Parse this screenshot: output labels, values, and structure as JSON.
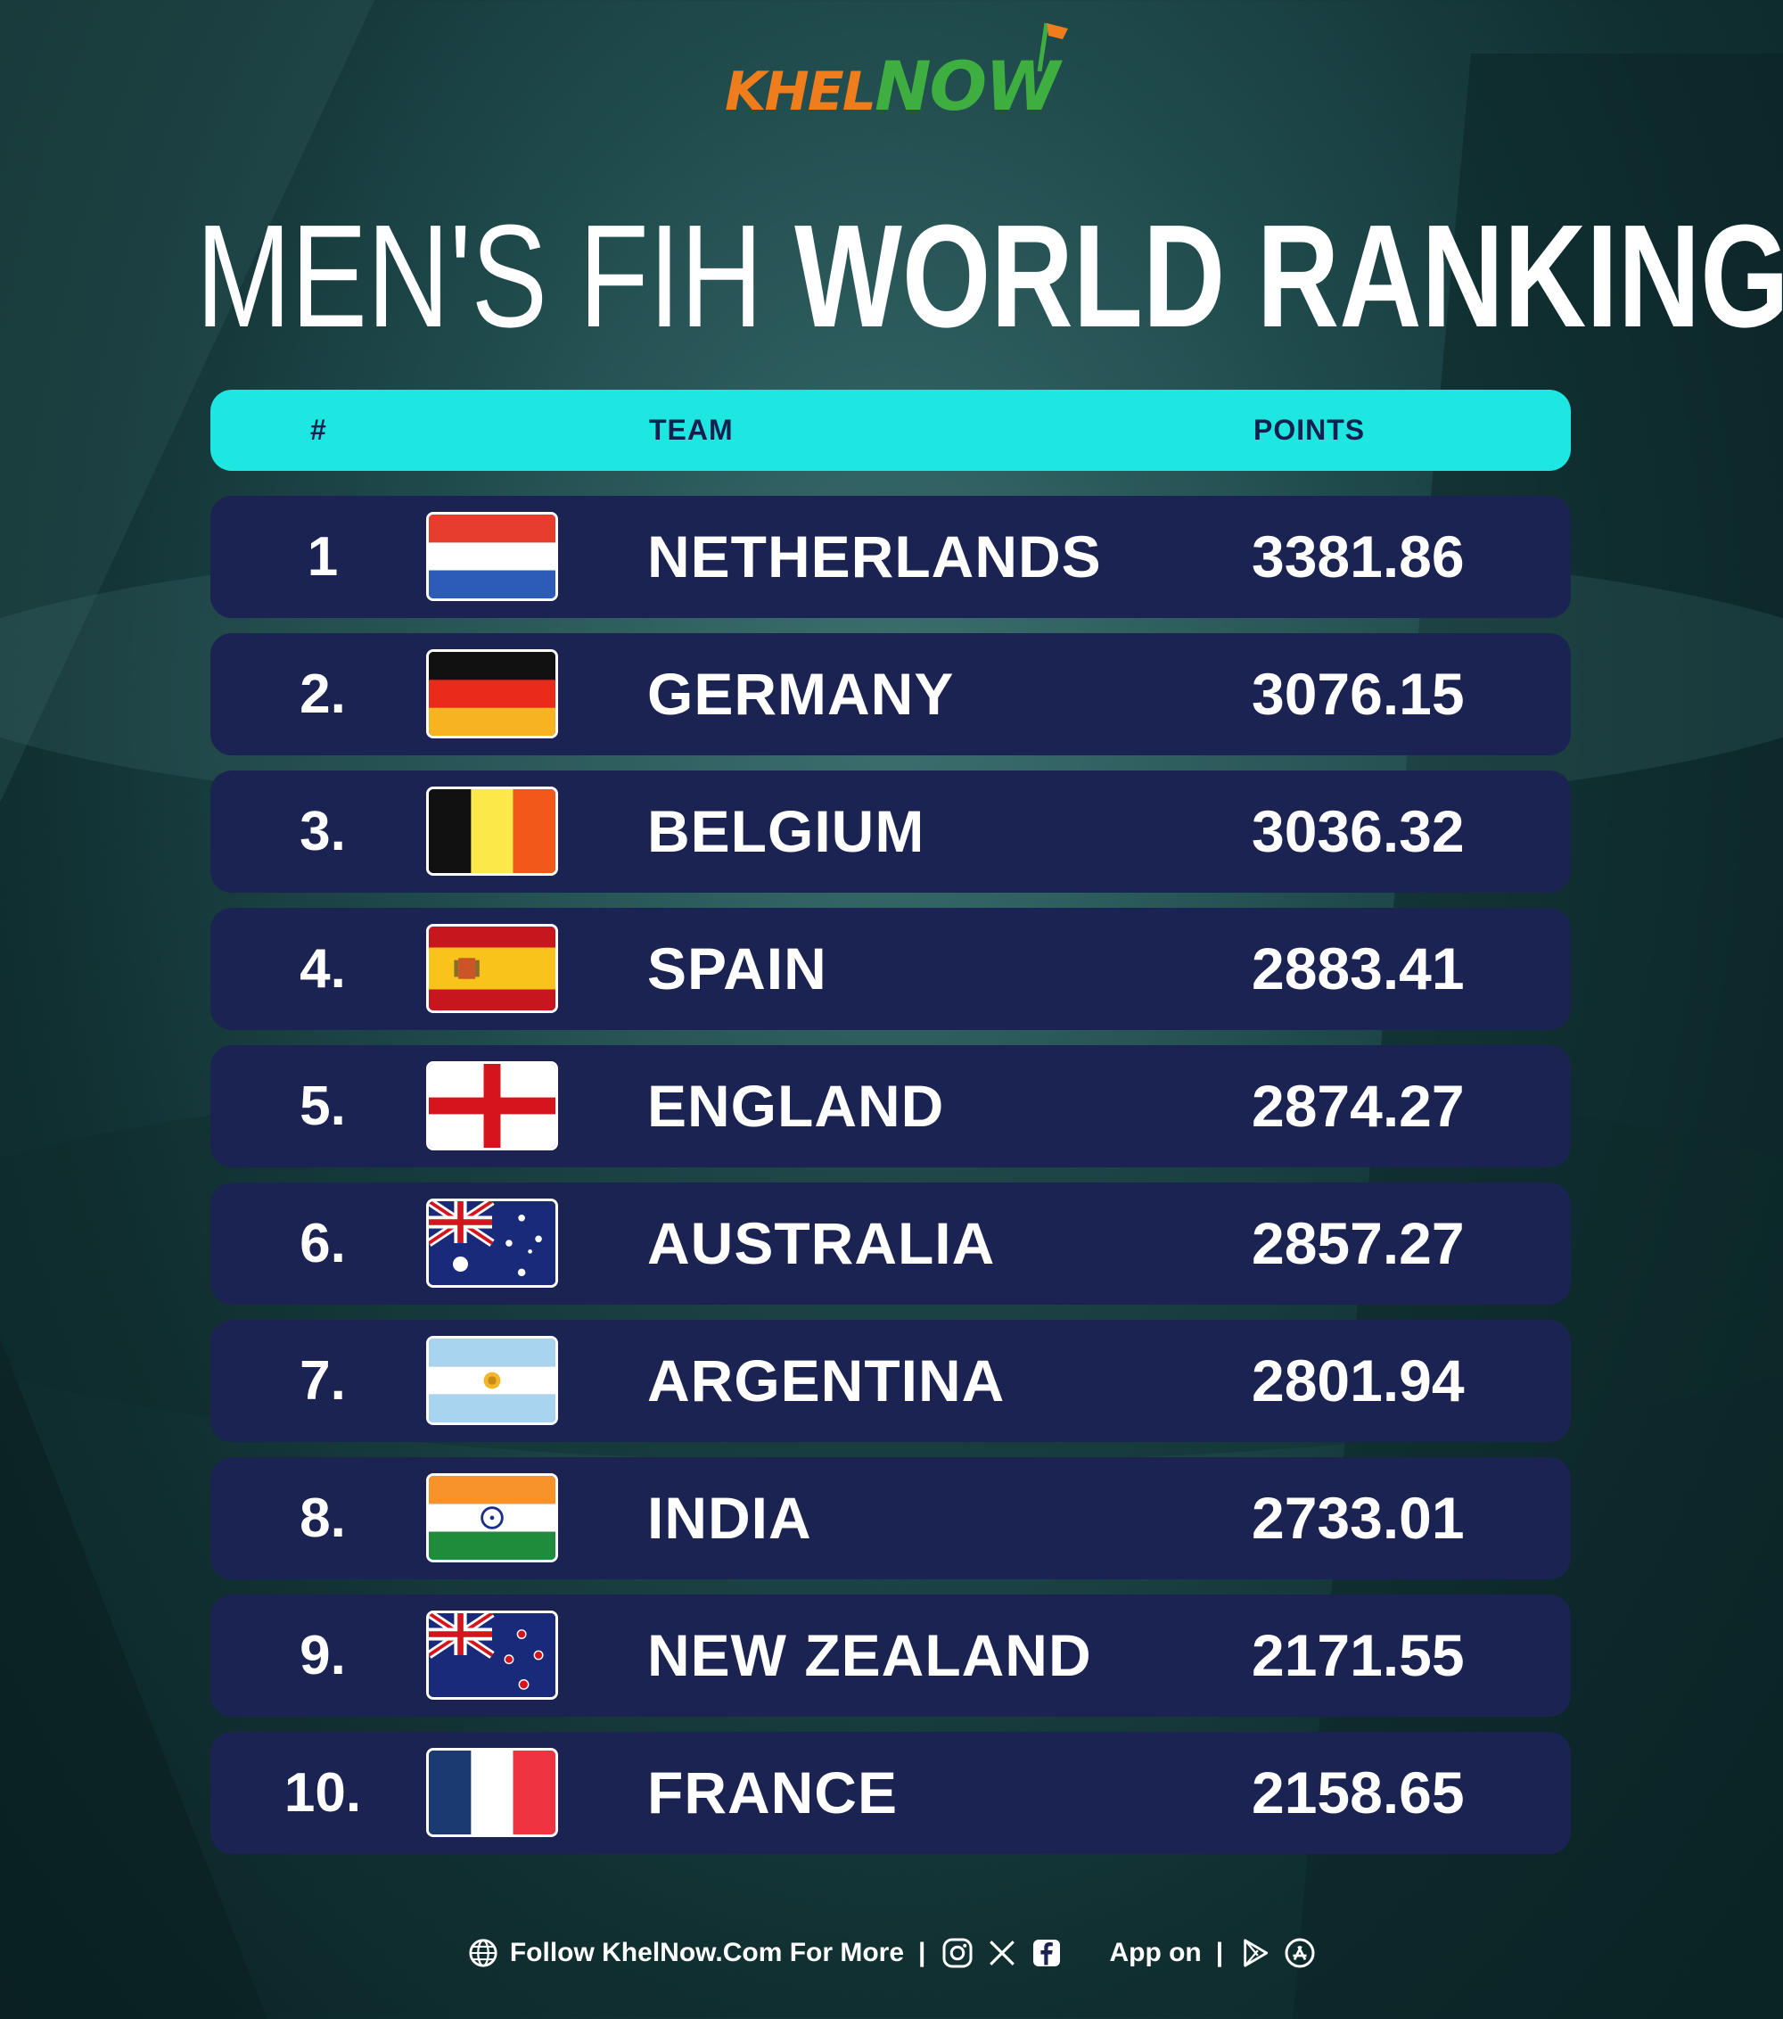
{
  "brand": {
    "logo_part1": "KHEL",
    "logo_part2": "NOW",
    "color_orange": "#f07d1c",
    "color_green": "#3dae3f"
  },
  "title": {
    "light": "MEN'S FIH ",
    "bold": "WORLD RANKINGS"
  },
  "table": {
    "header": {
      "rank": "#",
      "team": "TEAM",
      "points": "POINTS"
    },
    "header_color": "#1ee6e0",
    "row_color": "#1b2352",
    "rows": [
      {
        "rank": "1",
        "team": "NETHERLANDS",
        "points": "3381.86",
        "flag": "netherlands-flag-icon"
      },
      {
        "rank": "2.",
        "team": "GERMANY",
        "points": "3076.15",
        "flag": "germany-flag-icon"
      },
      {
        "rank": "3.",
        "team": "BELGIUM",
        "points": "3036.32",
        "flag": "belgium-flag-icon"
      },
      {
        "rank": "4.",
        "team": "SPAIN",
        "points": "2883.41",
        "flag": "spain-flag-icon"
      },
      {
        "rank": "5.",
        "team": "ENGLAND",
        "points": "2874.27",
        "flag": "england-flag-icon"
      },
      {
        "rank": "6.",
        "team": "AUSTRALIA",
        "points": "2857.27",
        "flag": "australia-flag-icon"
      },
      {
        "rank": "7.",
        "team": "ARGENTINA",
        "points": "2801.94",
        "flag": "argentina-flag-icon"
      },
      {
        "rank": "8.",
        "team": "INDIA",
        "points": "2733.01",
        "flag": "india-flag-icon"
      },
      {
        "rank": "9.",
        "team": "NEW ZEALAND",
        "points": "2171.55",
        "flag": "new-zealand-flag-icon"
      },
      {
        "rank": "10.",
        "team": "FRANCE",
        "points": "2158.65",
        "flag": "france-flag-icon"
      }
    ]
  },
  "footer": {
    "follow_text": "Follow KhelNow.Com For More",
    "separator": "|",
    "app_text": "App on",
    "icons": [
      "globe-icon",
      "instagram-icon",
      "x-icon",
      "facebook-icon",
      "play-store-icon",
      "app-store-icon"
    ]
  }
}
